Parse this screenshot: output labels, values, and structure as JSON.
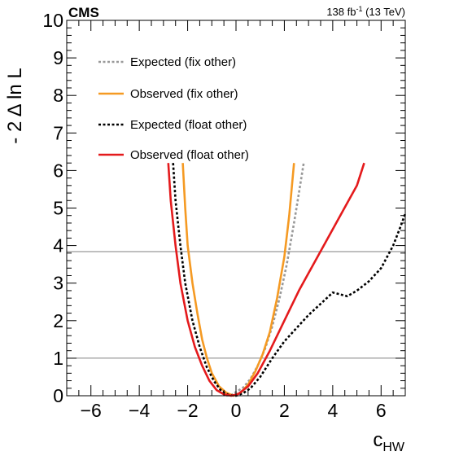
{
  "chart_data": {
    "type": "line",
    "experiment_label": "CMS",
    "lumi": {
      "value": "138 fb",
      "exponent": "-1",
      "energy": " (13 TeV)"
    },
    "xlabel": {
      "main": "c",
      "sub": "HW"
    },
    "ylabel": "- 2 Δ ln L",
    "xlim": [
      -7,
      7
    ],
    "ylim": [
      0,
      10
    ],
    "xticks": [
      -6,
      -4,
      -2,
      0,
      2,
      4,
      6
    ],
    "yticks": [
      0,
      1,
      2,
      3,
      4,
      5,
      6,
      7,
      8,
      9,
      10
    ],
    "xtick_labels": [
      "−6",
      "−4",
      "−2",
      "0",
      "2",
      "4",
      "6"
    ],
    "ytick_labels": [
      "0",
      "1",
      "2",
      "3",
      "4",
      "5",
      "6",
      "7",
      "8",
      "9",
      "10"
    ],
    "hlines": [
      1,
      3.84
    ],
    "legend_placement": "top-left",
    "series": [
      {
        "name": "Expected (fix other)",
        "color": "#999999",
        "dash": "dotted",
        "points": [
          [
            -0.4,
            0.0
          ],
          [
            -0.2,
            0.02
          ],
          [
            0.0,
            0.1
          ],
          [
            0.3,
            0.22
          ],
          [
            0.6,
            0.45
          ],
          [
            0.9,
            0.8
          ],
          [
            1.2,
            1.25
          ],
          [
            1.5,
            1.85
          ],
          [
            1.8,
            2.6
          ],
          [
            2.1,
            3.5
          ],
          [
            2.4,
            4.6
          ],
          [
            2.6,
            5.4
          ],
          [
            2.8,
            6.2
          ]
        ]
      },
      {
        "name": "Observed (fix other)",
        "color": "#f59a23",
        "dash": "solid",
        "points": [
          [
            -2.2,
            6.2
          ],
          [
            -2.1,
            5.0
          ],
          [
            -2.0,
            4.0
          ],
          [
            -1.8,
            3.0
          ],
          [
            -1.6,
            2.2
          ],
          [
            -1.4,
            1.5
          ],
          [
            -1.2,
            1.0
          ],
          [
            -1.0,
            0.6
          ],
          [
            -0.7,
            0.25
          ],
          [
            -0.4,
            0.08
          ],
          [
            -0.1,
            0.0
          ],
          [
            0.2,
            0.08
          ],
          [
            0.5,
            0.3
          ],
          [
            0.8,
            0.65
          ],
          [
            1.1,
            1.1
          ],
          [
            1.4,
            1.7
          ],
          [
            1.7,
            2.6
          ],
          [
            2.0,
            3.7
          ],
          [
            2.2,
            4.8
          ],
          [
            2.4,
            6.2
          ]
        ]
      },
      {
        "name": "Expected (float other)",
        "color": "#000000",
        "dash": "dotted",
        "points": [
          [
            -2.6,
            6.2
          ],
          [
            -2.5,
            5.2
          ],
          [
            -2.3,
            4.0
          ],
          [
            -2.1,
            3.0
          ],
          [
            -1.8,
            2.0
          ],
          [
            -1.5,
            1.3
          ],
          [
            -1.2,
            0.75
          ],
          [
            -0.9,
            0.38
          ],
          [
            -0.6,
            0.12
          ],
          [
            -0.3,
            0.02
          ],
          [
            0.0,
            0.0
          ],
          [
            0.3,
            0.07
          ],
          [
            0.6,
            0.2
          ],
          [
            1.0,
            0.5
          ],
          [
            1.5,
            1.0
          ],
          [
            2.0,
            1.45
          ],
          [
            2.5,
            1.8
          ],
          [
            3.0,
            2.15
          ],
          [
            3.5,
            2.45
          ],
          [
            4.0,
            2.75
          ],
          [
            4.3,
            2.7
          ],
          [
            4.6,
            2.65
          ],
          [
            5.0,
            2.8
          ],
          [
            5.5,
            3.05
          ],
          [
            6.0,
            3.4
          ],
          [
            6.5,
            4.0
          ],
          [
            6.8,
            4.5
          ],
          [
            7.0,
            4.85
          ]
        ]
      },
      {
        "name": "Observed (float other)",
        "color": "#e41a1c",
        "dash": "solid",
        "points": [
          [
            -2.8,
            6.2
          ],
          [
            -2.7,
            5.2
          ],
          [
            -2.5,
            4.0
          ],
          [
            -2.3,
            3.0
          ],
          [
            -2.0,
            2.0
          ],
          [
            -1.7,
            1.3
          ],
          [
            -1.4,
            0.8
          ],
          [
            -1.1,
            0.4
          ],
          [
            -0.8,
            0.15
          ],
          [
            -0.5,
            0.04
          ],
          [
            -0.2,
            0.0
          ],
          [
            0.1,
            0.05
          ],
          [
            0.5,
            0.25
          ],
          [
            0.9,
            0.6
          ],
          [
            1.4,
            1.2
          ],
          [
            2.0,
            2.0
          ],
          [
            2.6,
            2.8
          ],
          [
            3.2,
            3.5
          ],
          [
            3.8,
            4.2
          ],
          [
            4.4,
            4.9
          ],
          [
            5.0,
            5.6
          ],
          [
            5.3,
            6.2
          ]
        ]
      }
    ]
  }
}
